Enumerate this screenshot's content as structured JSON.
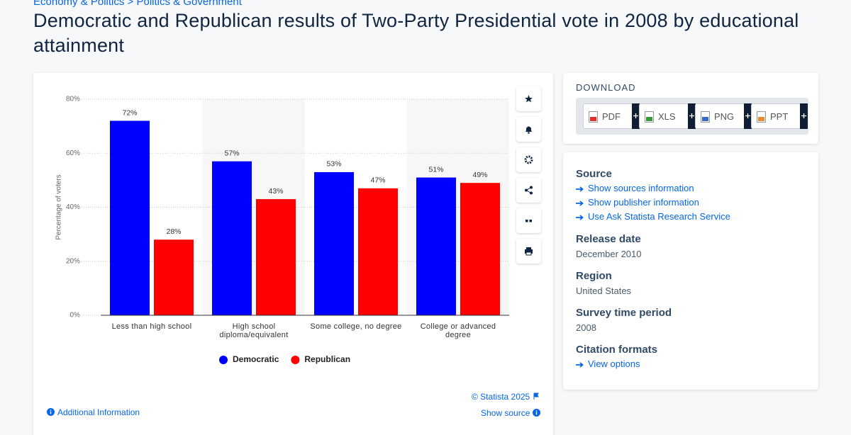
{
  "breadcrumb": [
    "Economy & Politics",
    "Politics & Government"
  ],
  "title": "Democratic and Republican results of Two-Party Presidential vote in 2008 by educational attainment",
  "chart_data": {
    "type": "bar",
    "y_axis_label": "Percentage of voters",
    "categories": [
      "Less than high school",
      "High school diploma/equivalent",
      "Some college, no degree",
      "College or advanced degree"
    ],
    "series": [
      {
        "name": "Democratic",
        "color": "#0000ff",
        "values": [
          72,
          57,
          53,
          51
        ],
        "value_labels": [
          "72%",
          "57%",
          "53%",
          "51%"
        ]
      },
      {
        "name": "Republican",
        "color": "#ff0000",
        "values": [
          28,
          43,
          47,
          49
        ],
        "value_labels": [
          "28%",
          "43%",
          "47%",
          "49%"
        ]
      }
    ],
    "ylim": [
      0,
      80
    ],
    "yticks": [
      {
        "value": 0,
        "label": "0%"
      },
      {
        "value": 20,
        "label": "20%"
      },
      {
        "value": 40,
        "label": "40%"
      },
      {
        "value": 60,
        "label": "60%"
      },
      {
        "value": 80,
        "label": "80%"
      }
    ],
    "grid": true,
    "legend": "bottom"
  },
  "footer": {
    "copyright": "© Statista 2025",
    "show_source": "Show source",
    "additional_info": "Additional Information"
  },
  "download": {
    "heading": "DOWNLOAD",
    "formats": [
      "PDF",
      "XLS",
      "PNG",
      "PPT"
    ]
  },
  "details": {
    "source_heading": "Source",
    "source_links": [
      "Show sources information",
      "Show publisher information",
      "Use Ask Statista Research Service"
    ],
    "release_date_heading": "Release date",
    "release_date": "December 2010",
    "region_heading": "Region",
    "region": "United States",
    "survey_period_heading": "Survey time period",
    "survey_period": "2008",
    "citation_heading": "Citation formats",
    "citation_link": "View options"
  }
}
